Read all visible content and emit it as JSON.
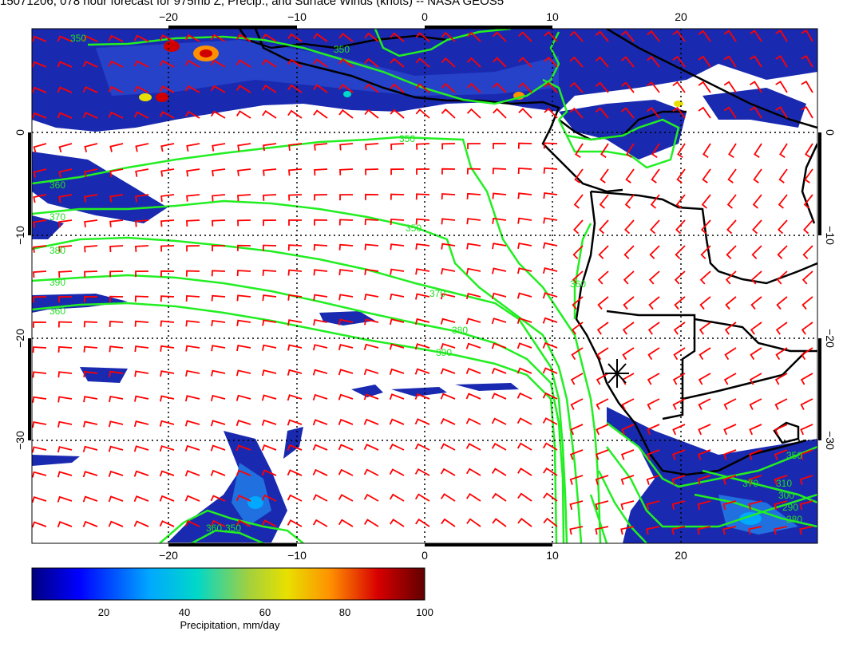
{
  "title": "15071206, 078 hour forecast for 975mb Z, Precip., and Surface Winds (knots) -- NASA GEOS5",
  "axes": {
    "top_lon_labels": [
      "−20",
      "−10",
      "0",
      "10",
      "20"
    ],
    "bottom_lon_labels": [
      "−20",
      "−10",
      "0",
      "10",
      "20"
    ],
    "left_lat_labels": [
      "0",
      "−10",
      "−20",
      "−30"
    ],
    "right_lat_labels": [
      "0",
      "−10",
      "−20",
      "−30"
    ]
  },
  "contour_labels": [
    "350",
    "350",
    "350",
    "360",
    "370",
    "380",
    "390",
    "360",
    "350",
    "370",
    "380",
    "390",
    "360",
    "350",
    "310",
    "300",
    "290",
    "280",
    "370",
    "360",
    "350"
  ],
  "colorbar": {
    "label": "Precipitation, mm/day",
    "ticks": [
      "20",
      "40",
      "60",
      "80",
      "100"
    ],
    "colors": [
      "#000080",
      "#0000ff",
      "#00aaff",
      "#00d0c0",
      "#80d040",
      "#e0e000",
      "#ff9000",
      "#d00000",
      "#600000"
    ]
  },
  "colors": {
    "wind_barb": "#ff0000",
    "contour": "#22ee22",
    "precip_light": "#1020a0",
    "coastline": "#000000"
  },
  "marker": "star-marker-icon"
}
